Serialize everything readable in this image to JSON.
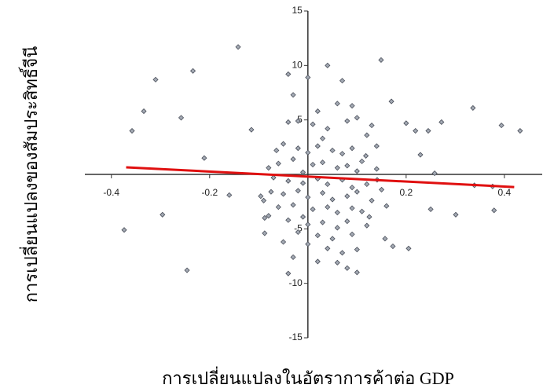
{
  "chart_data": {
    "type": "scatter",
    "xlabel": "การเปลี่ยนแปลงในอัตราการค้าต่อ GDP",
    "ylabel": "การเปลี่ยนแปลงของสัมประสิทธิ์จีนี",
    "xlim": [
      -0.454,
      0.477
    ],
    "ylim": [
      -15,
      15
    ],
    "xticks": [
      -0.4,
      -0.2,
      0.2,
      0.4
    ],
    "yticks": [
      -15,
      -10,
      -5,
      5,
      10,
      15
    ],
    "series": [
      {
        "type": "scatter",
        "color": "#a3a9b3",
        "x": [
          -0.374,
          -0.358,
          -0.334,
          -0.31,
          -0.296,
          -0.258,
          -0.246,
          -0.234,
          -0.211,
          -0.16,
          -0.142,
          -0.115,
          -0.096,
          -0.088,
          -0.088,
          -0.075,
          -0.064,
          0.149,
          0.17,
          0.2,
          0.219,
          0.229,
          0.245,
          0.25,
          0.258,
          0.272,
          0.301,
          0.336,
          0.339,
          0.376,
          0.379,
          0.394,
          0.432,
          0.173,
          0.157,
          0.205,
          0.118,
          0.141,
          0.125,
          -0.04,
          0.0,
          0.04,
          0.07,
          -0.03,
          0.06,
          0.09,
          0.02,
          -0.04,
          -0.02,
          0.01,
          0.04,
          0.08,
          0.1,
          0.12,
          0.03,
          -0.05,
          -0.02,
          0.0,
          0.02,
          0.05,
          0.07,
          0.09,
          0.11,
          -0.06,
          -0.03,
          0.01,
          0.03,
          0.06,
          0.08,
          0.1,
          -0.01,
          -0.07,
          -0.04,
          -0.01,
          0.02,
          0.04,
          0.07,
          0.09,
          0.12,
          -0.05,
          -0.02,
          0.0,
          0.03,
          0.05,
          0.08,
          0.1,
          0.13,
          -0.06,
          -0.03,
          0.01,
          0.04,
          0.06,
          0.09,
          0.11,
          -0.01,
          -0.04,
          0.0,
          0.03,
          0.06,
          0.08,
          0.12,
          -0.02,
          0.02,
          0.05,
          0.09,
          -0.05,
          0.0,
          0.04,
          0.07,
          0.1,
          -0.03,
          0.02,
          0.06,
          0.08,
          -0.04,
          0.1,
          -0.08,
          -0.09,
          -0.08,
          0.14,
          0.15,
          0.16,
          0.14,
          0.13
        ],
        "values": [
          -5.1,
          4.0,
          5.8,
          8.7,
          -3.7,
          5.2,
          -8.8,
          9.5,
          1.5,
          -1.9,
          11.7,
          4.1,
          -2.0,
          -4.0,
          -5.4,
          -1.6,
          2.2,
          10.5,
          6.7,
          4.7,
          4.0,
          1.8,
          4.0,
          -3.2,
          0.1,
          4.8,
          -3.7,
          6.1,
          -1.0,
          -1.1,
          -3.3,
          4.5,
          4.0,
          -6.6,
          -5.9,
          -6.8,
          1.7,
          -0.5,
          -3.9,
          9.2,
          8.9,
          10.0,
          8.6,
          7.3,
          6.5,
          6.3,
          5.8,
          4.8,
          4.9,
          4.6,
          4.2,
          4.9,
          5.2,
          3.6,
          3.3,
          2.8,
          2.4,
          2.0,
          2.6,
          2.2,
          1.9,
          2.4,
          1.2,
          1.0,
          1.4,
          0.9,
          1.1,
          0.6,
          0.8,
          0.3,
          0.2,
          -0.3,
          -0.6,
          -0.8,
          -0.4,
          -0.9,
          -0.5,
          -1.2,
          -0.9,
          -1.8,
          -1.5,
          -2.1,
          -1.7,
          -2.3,
          -2.0,
          -1.6,
          -2.4,
          -3.0,
          -2.8,
          -3.2,
          -3.0,
          -3.5,
          -3.1,
          -3.4,
          -3.9,
          -4.2,
          -4.6,
          -4.4,
          -4.9,
          -4.3,
          -4.7,
          -5.3,
          -5.6,
          -5.9,
          -5.5,
          -6.2,
          -6.4,
          -6.8,
          -7.2,
          -6.9,
          -7.6,
          -8.0,
          -8.1,
          -8.6,
          -9.1,
          -9.0,
          -3.8,
          -2.4,
          0.6,
          0.5,
          -1.4,
          -2.9,
          2.6,
          4.5
        ]
      },
      {
        "type": "line",
        "color": "#e01010",
        "x": [
          -0.37,
          0.42
        ],
        "values": [
          0.65,
          -1.16
        ]
      }
    ]
  }
}
